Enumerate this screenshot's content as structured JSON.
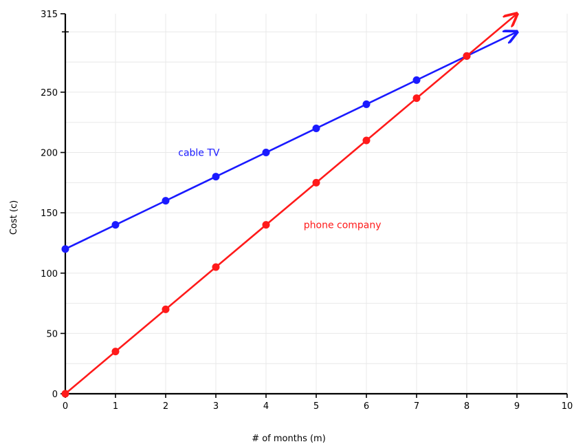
{
  "chart_data": {
    "type": "line",
    "xlabel": "# of months (m)",
    "ylabel": "Cost (c)",
    "xlim": [
      0,
      10
    ],
    "ylim": [
      0,
      315
    ],
    "x_ticks": [
      0,
      1,
      2,
      3,
      4,
      5,
      6,
      7,
      8,
      9,
      10
    ],
    "y_ticks": [
      0,
      50,
      100,
      150,
      200,
      250,
      315
    ],
    "grid": true,
    "series": [
      {
        "name": "cable TV",
        "color": "#1a1aff",
        "x": [
          0,
          1,
          2,
          3,
          4,
          5,
          6,
          7,
          8
        ],
        "y": [
          120,
          140,
          160,
          180,
          200,
          220,
          240,
          260,
          280
        ],
        "arrow_to": [
          9,
          300
        ]
      },
      {
        "name": "phone company",
        "color": "#ff1a1a",
        "x": [
          0,
          1,
          2,
          3,
          4,
          5,
          6,
          7,
          8
        ],
        "y": [
          0,
          35,
          70,
          105,
          140,
          175,
          210,
          245,
          280
        ],
        "arrow_to": [
          9,
          315
        ]
      }
    ]
  }
}
